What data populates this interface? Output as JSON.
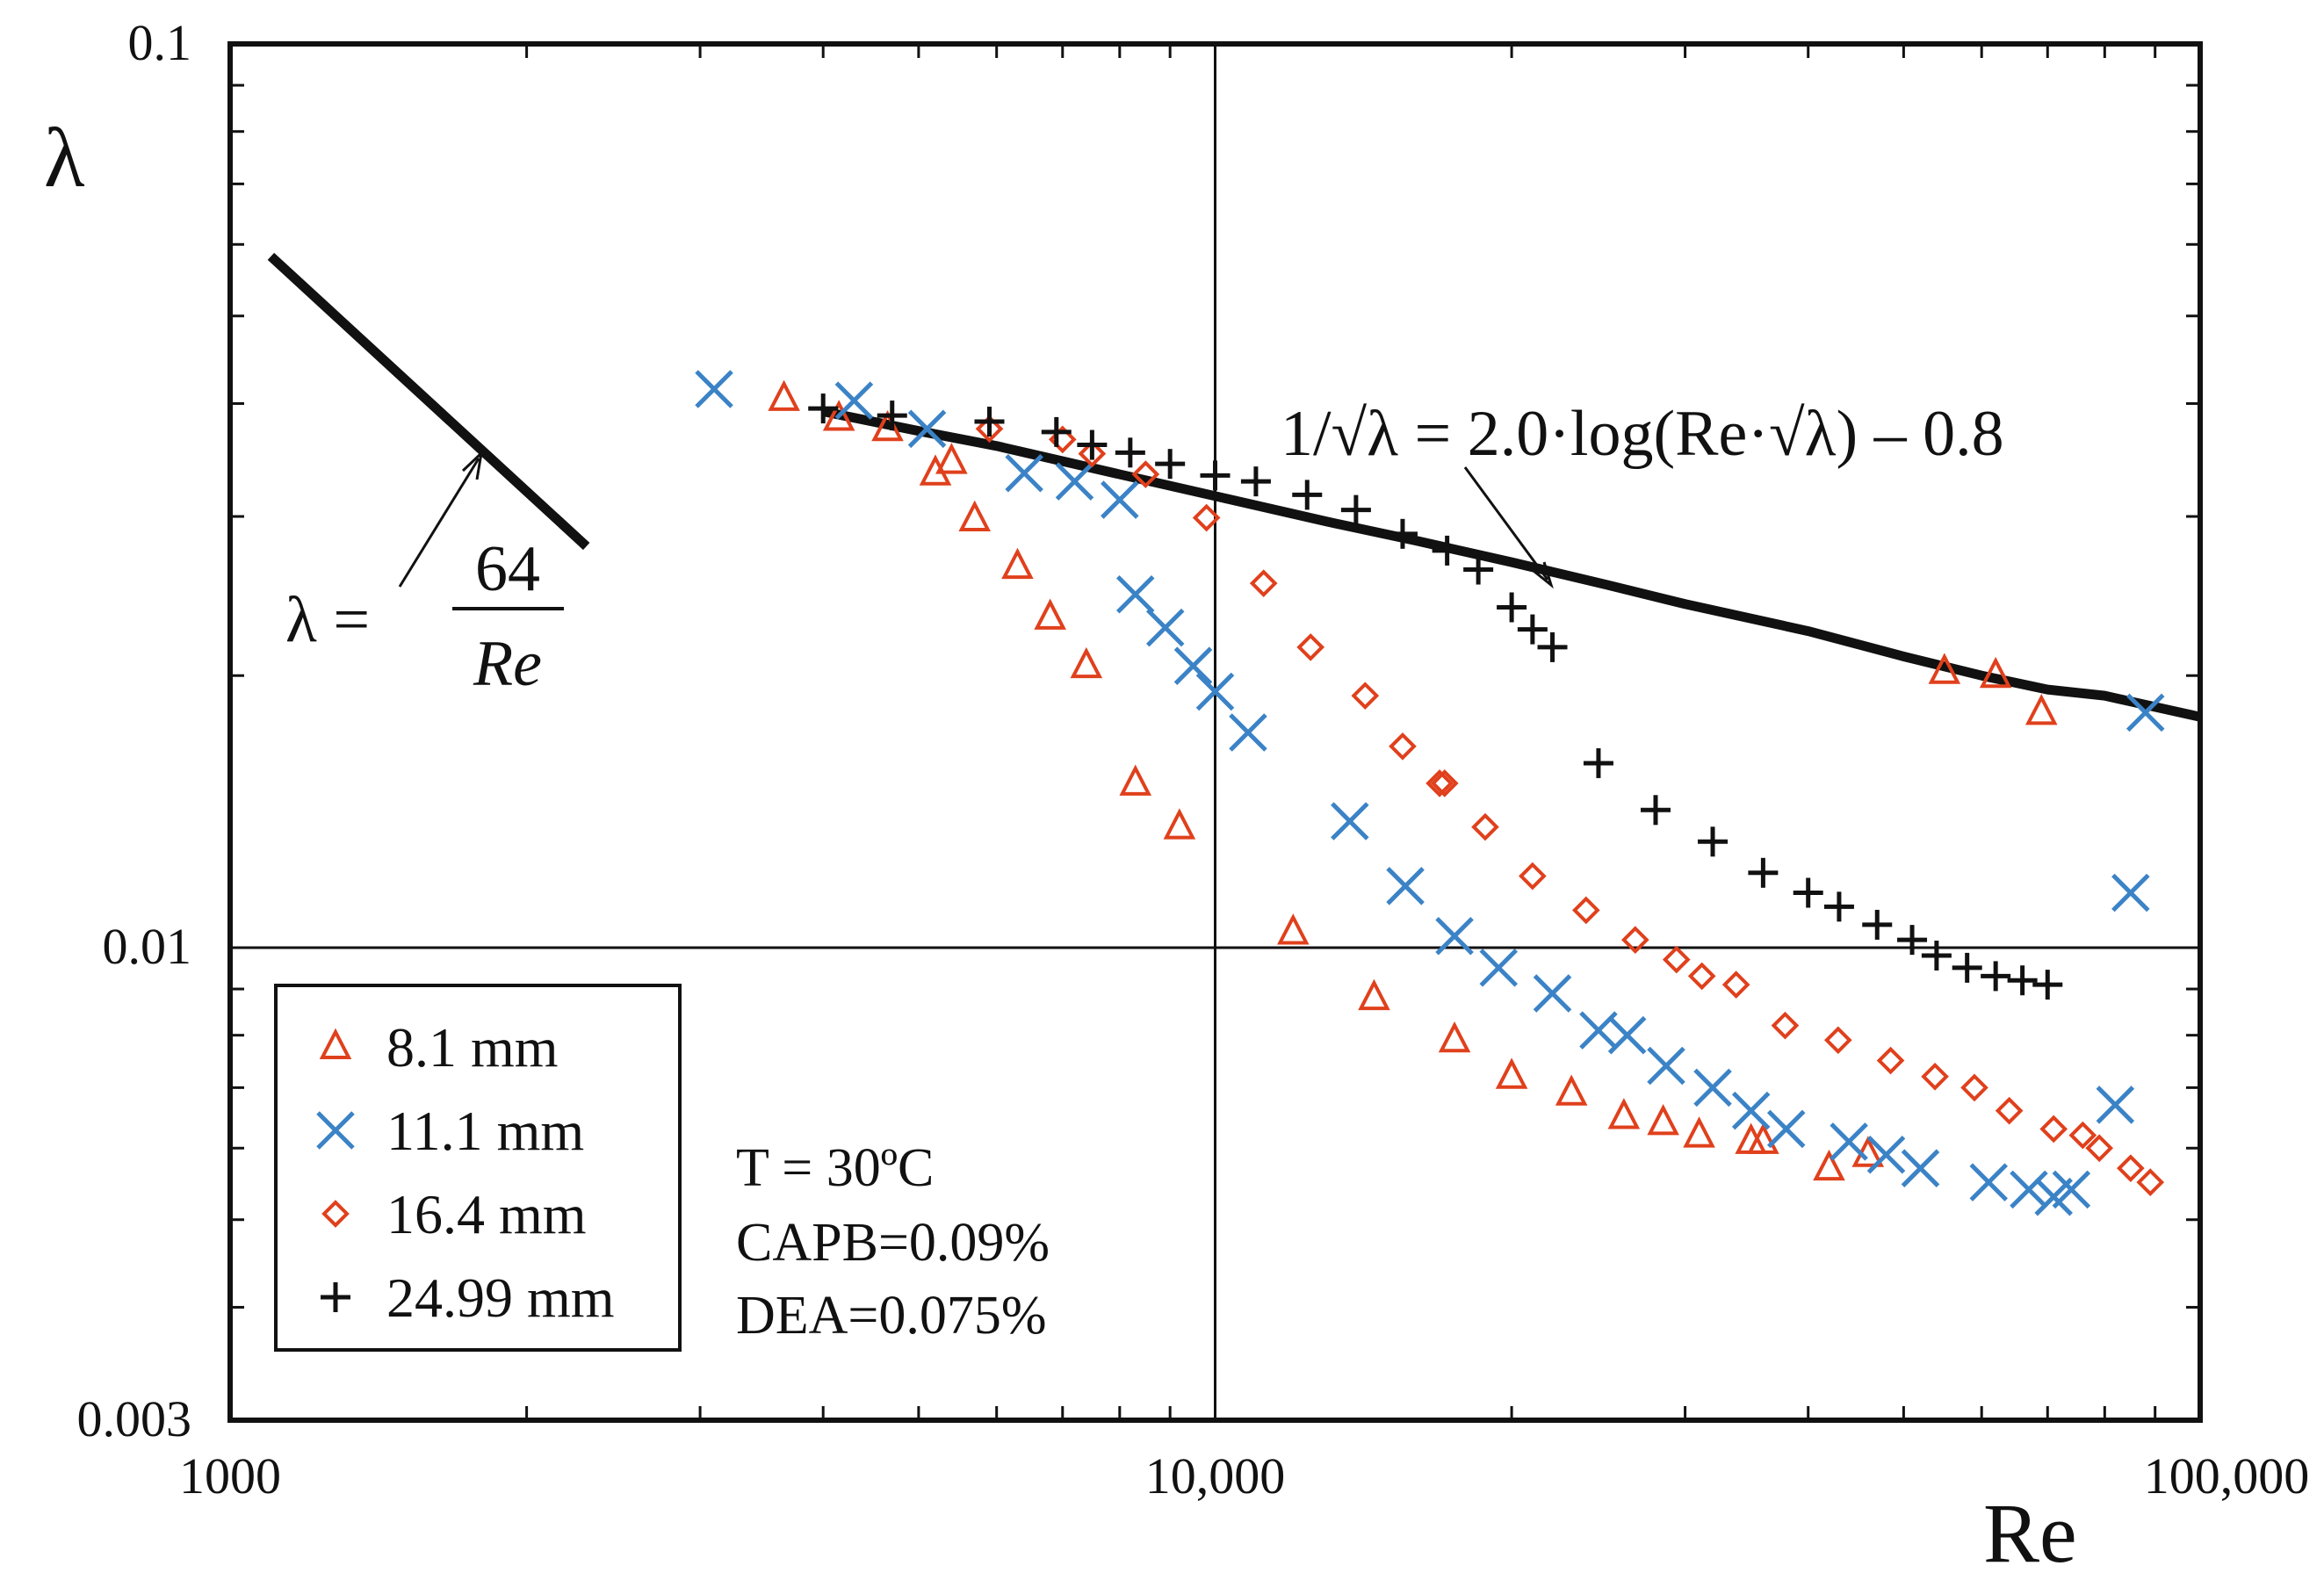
{
  "chart_data": {
    "type": "scatter",
    "xscale": "log",
    "yscale": "log",
    "xlim": [
      1000,
      100000
    ],
    "ylim": [
      0.003,
      0.1
    ],
    "xlabel": "Re",
    "ylabel": "λ",
    "x_ticks": [
      {
        "value": 1000,
        "label": "1000"
      },
      {
        "value": 10000,
        "label": "10,000"
      },
      {
        "value": 100000,
        "label": "100,000"
      }
    ],
    "y_ticks": [
      {
        "value": 0.1,
        "label": "0.1"
      },
      {
        "value": 0.01,
        "label": "0.01"
      },
      {
        "value": 0.003,
        "label": "0.003"
      }
    ],
    "grid": {
      "x": [
        10000
      ],
      "y": [
        0.01
      ]
    },
    "laminar_line": {
      "label_lhs": "λ =",
      "label_num": "64",
      "label_den": "Re",
      "points": [
        [
          1100,
          0.0582
        ],
        [
          2300,
          0.0278
        ]
      ]
    },
    "turbulent_curve": {
      "label": "1/√λ = 2.0·log(Re·√λ) – 0.8",
      "points": [
        [
          4000,
          0.0392
        ],
        [
          5000,
          0.0373
        ],
        [
          6000,
          0.0359
        ],
        [
          8000,
          0.0334
        ],
        [
          10000,
          0.0316
        ],
        [
          13000,
          0.0296
        ],
        [
          16000,
          0.0282
        ],
        [
          20000,
          0.0267
        ],
        [
          25000,
          0.0252
        ],
        [
          30000,
          0.024
        ],
        [
          40000,
          0.0224
        ],
        [
          50000,
          0.021
        ],
        [
          60000,
          0.02
        ],
        [
          70000,
          0.0193
        ],
        [
          80000,
          0.019
        ],
        [
          100000,
          0.018
        ]
      ]
    },
    "legend_position": "bottom-left",
    "annotations": [
      "T = 30ºC",
      "CAPB=0.09%",
      "DEA=0.075%"
    ],
    "series": [
      {
        "name": "8.1 mm",
        "marker": "triangle",
        "color": "#e0401c",
        "points": [
          [
            3650,
            0.0405
          ],
          [
            4150,
            0.0385
          ],
          [
            4650,
            0.0375
          ],
          [
            5200,
            0.0335
          ],
          [
            5400,
            0.0345
          ],
          [
            5700,
            0.0298
          ],
          [
            6300,
            0.0264
          ],
          [
            6800,
            0.0232
          ],
          [
            7400,
            0.0205
          ],
          [
            8300,
            0.0152
          ],
          [
            9200,
            0.0136
          ],
          [
            12000,
            0.0104
          ],
          [
            14500,
            0.0088
          ],
          [
            17500,
            0.0079
          ],
          [
            20000,
            0.0072
          ],
          [
            23000,
            0.0069
          ],
          [
            26000,
            0.0065
          ],
          [
            28500,
            0.0064
          ],
          [
            31000,
            0.0062
          ],
          [
            35000,
            0.0061
          ],
          [
            36000,
            0.0061
          ],
          [
            42000,
            0.0057
          ],
          [
            46000,
            0.0059
          ],
          [
            55000,
            0.0202
          ],
          [
            62000,
            0.02
          ],
          [
            69000,
            0.0182
          ]
        ]
      },
      {
        "name": "11.1 mm",
        "marker": "x",
        "color": "#3b83c6",
        "points": [
          [
            3100,
            0.0415
          ],
          [
            4300,
            0.0403
          ],
          [
            5100,
            0.0375
          ],
          [
            6400,
            0.0335
          ],
          [
            7200,
            0.0328
          ],
          [
            8000,
            0.0313
          ],
          [
            8300,
            0.0246
          ],
          [
            8900,
            0.0226
          ],
          [
            9500,
            0.0205
          ],
          [
            10000,
            0.0192
          ],
          [
            10800,
            0.0173
          ],
          [
            13700,
            0.0138
          ],
          [
            15600,
            0.0117
          ],
          [
            17500,
            0.0103
          ],
          [
            19400,
            0.0095
          ],
          [
            22000,
            0.0089
          ],
          [
            24500,
            0.0081
          ],
          [
            26200,
            0.008
          ],
          [
            28700,
            0.0074
          ],
          [
            32000,
            0.007
          ],
          [
            35000,
            0.0066
          ],
          [
            38000,
            0.0063
          ],
          [
            44000,
            0.0061
          ],
          [
            48000,
            0.0059
          ],
          [
            52000,
            0.0057
          ],
          [
            61000,
            0.0055
          ],
          [
            67000,
            0.0054
          ],
          [
            71000,
            0.0053
          ],
          [
            74000,
            0.0054
          ],
          [
            82000,
            0.0067
          ],
          [
            85000,
            0.0115
          ],
          [
            88000,
            0.0182
          ]
        ]
      },
      {
        "name": "16.4 mm",
        "marker": "diamond",
        "color": "#e0401c",
        "points": [
          [
            5900,
            0.0375
          ],
          [
            7000,
            0.0365
          ],
          [
            7500,
            0.0352
          ],
          [
            8500,
            0.0334
          ],
          [
            9800,
            0.0299
          ],
          [
            11200,
            0.0253
          ],
          [
            12500,
            0.0215
          ],
          [
            14200,
            0.019
          ],
          [
            15500,
            0.0167
          ],
          [
            16900,
            0.0152
          ],
          [
            17100,
            0.0152
          ],
          [
            18800,
            0.0136
          ],
          [
            21000,
            0.012
          ],
          [
            23800,
            0.011
          ],
          [
            26700,
            0.0102
          ],
          [
            29400,
            0.0097
          ],
          [
            31200,
            0.0093
          ],
          [
            33800,
            0.0091
          ],
          [
            37900,
            0.0082
          ],
          [
            42900,
            0.0079
          ],
          [
            48500,
            0.0075
          ],
          [
            53800,
            0.0072
          ],
          [
            59000,
            0.007
          ],
          [
            64000,
            0.0066
          ],
          [
            71000,
            0.0063
          ],
          [
            76000,
            0.0062
          ],
          [
            79000,
            0.006
          ],
          [
            85000,
            0.0057
          ],
          [
            89000,
            0.0055
          ]
        ]
      },
      {
        "name": "24.99 mm",
        "marker": "plus",
        "color": "#111111",
        "points": [
          [
            4000,
            0.0395
          ],
          [
            4700,
            0.0388
          ],
          [
            5900,
            0.0382
          ],
          [
            6900,
            0.0372
          ],
          [
            7500,
            0.036
          ],
          [
            8200,
            0.0353
          ],
          [
            9000,
            0.0343
          ],
          [
            10000,
            0.0333
          ],
          [
            11000,
            0.0328
          ],
          [
            12400,
            0.0317
          ],
          [
            13900,
            0.0305
          ],
          [
            15500,
            0.0287
          ],
          [
            17200,
            0.0275
          ],
          [
            18500,
            0.0262
          ],
          [
            20000,
            0.0238
          ],
          [
            21000,
            0.0225
          ],
          [
            22000,
            0.0215
          ],
          [
            24500,
            0.016
          ],
          [
            28000,
            0.0142
          ],
          [
            32000,
            0.0131
          ],
          [
            36000,
            0.0121
          ],
          [
            40000,
            0.0115
          ],
          [
            43000,
            0.0111
          ],
          [
            47000,
            0.0106
          ],
          [
            51000,
            0.0102
          ],
          [
            54000,
            0.0098
          ],
          [
            58000,
            0.0095
          ],
          [
            62000,
            0.0093
          ],
          [
            66000,
            0.0092
          ],
          [
            70000,
            0.0091
          ]
        ]
      }
    ]
  }
}
